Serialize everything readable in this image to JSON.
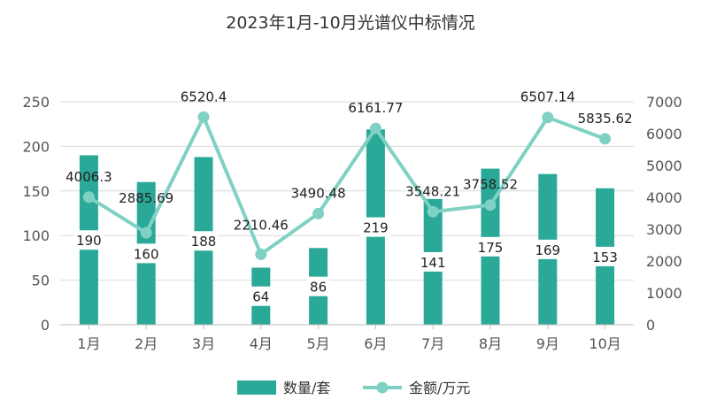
{
  "chart_data": {
    "type": "bar",
    "title": "2023年1月-10月光谱仪中标情况",
    "categories": [
      "1月",
      "2月",
      "3月",
      "4月",
      "5月",
      "6月",
      "7月",
      "8月",
      "9月",
      "10月"
    ],
    "series": [
      {
        "name": "数量/套",
        "type": "bar",
        "axis": "left",
        "color": "#2aa898",
        "values": [
          190,
          160,
          188,
          64,
          86,
          219,
          141,
          175,
          169,
          153
        ]
      },
      {
        "name": "金额/万元",
        "type": "line",
        "axis": "right",
        "color": "#7fd1c4",
        "values": [
          4006.3,
          2885.69,
          6520.4,
          2210.46,
          3490.48,
          6161.77,
          3548.21,
          3758.52,
          6507.14,
          5835.62
        ],
        "labels": [
          "4006.3",
          "2885.69",
          "6520.4",
          "2210.46",
          "3490.48",
          "6161.77",
          "3548.21",
          "3758.52",
          "6507.14",
          "5835.62"
        ]
      }
    ],
    "y_left": {
      "min": 0,
      "max": 250,
      "ticks": [
        0,
        50,
        100,
        150,
        200,
        250
      ]
    },
    "y_right": {
      "min": 0,
      "max": 7000,
      "ticks": [
        0,
        1000,
        2000,
        3000,
        4000,
        5000,
        6000,
        7000
      ]
    },
    "grid": true,
    "legend": "bottom"
  }
}
